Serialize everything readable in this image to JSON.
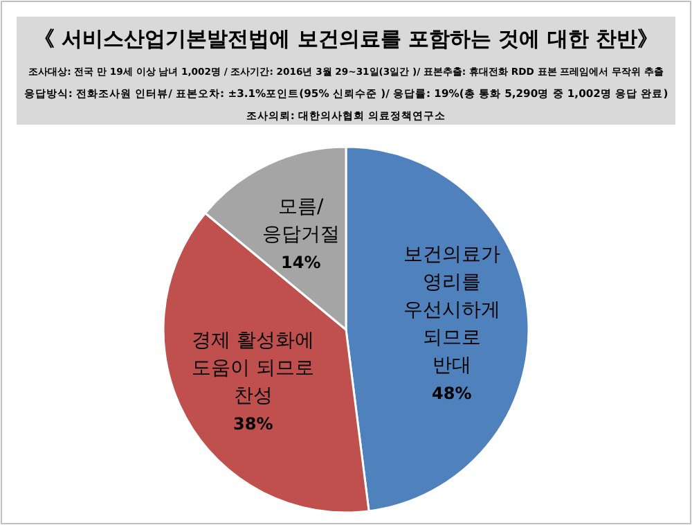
{
  "chart_data": {
    "type": "pie",
    "title": "《 서비스산업기본발전법에 보건의료를 포함하는 것에 대한 찬반》",
    "annotations": [
      "조사대상: 전국 만 19세 이상 남녀 1,002명 / 조사기간: 2016년 3월 29~31일(3일간 )/ 표본추출: 휴대전화 RDD 표본 프레임에서 무작위 추출",
      "응답방식: 전화조사원 인터뷰/ 표본오차: ±3.1%포인트(95% 신뢰수준 )/ 응답률: 19%(총 통화 5,290명 중 1,002명 응답 완료)",
      "조사의뢰: 대한의사협회 의료정책연구소"
    ],
    "categories": [
      "보건의료가\n영리를\n우선시하게\n되므로\n반대",
      "경제 활성화에\n도움이 되므로\n찬성",
      "모름/\n응답거절"
    ],
    "values": [
      48,
      38,
      14
    ],
    "value_labels": [
      "48%",
      "38%",
      "14%"
    ],
    "colors": [
      "#4f81bd",
      "#c0504d",
      "#a5a5a5"
    ]
  }
}
